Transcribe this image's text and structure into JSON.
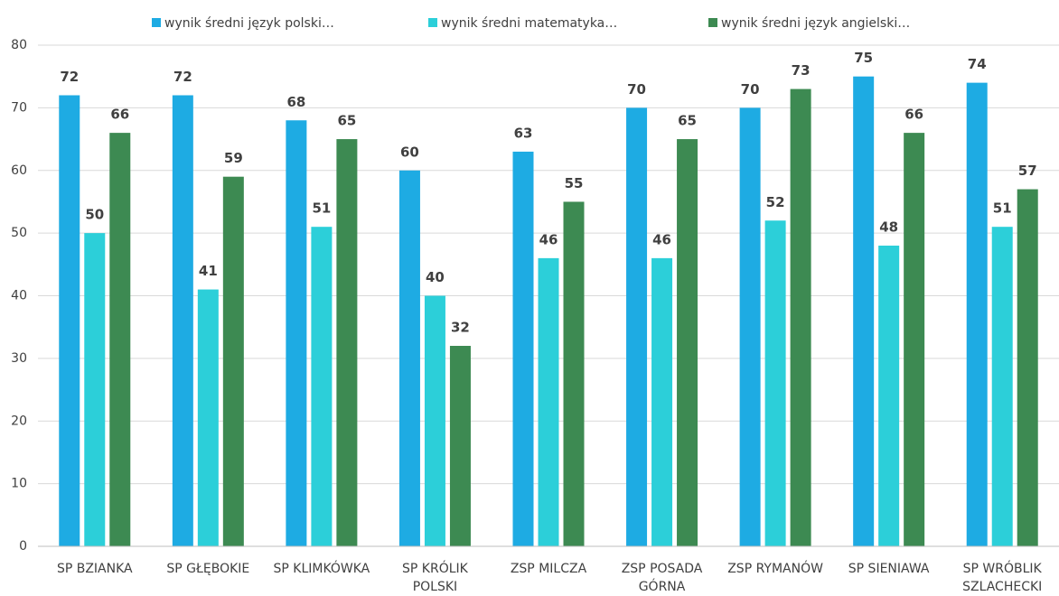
{
  "chart_data": {
    "type": "bar",
    "categories": [
      "SP BZIANKA",
      "SP GŁĘBOKIE",
      "SP KLIMKÓWKA",
      "SP KRÓLIK POLSKI",
      "ZSP MILCZA",
      "ZSP POSADA GÓRNA",
      "ZSP RYMANÓW",
      "SP SIENIAWA",
      "SP WRÓBLIK SZLACHECKI"
    ],
    "series": [
      {
        "name": "wynik średni język polski…",
        "color": "#1eabe3",
        "values": [
          72,
          72,
          68,
          60,
          63,
          70,
          70,
          75,
          74
        ]
      },
      {
        "name": "wynik średni matematyka…",
        "color": "#2ccfd9",
        "values": [
          50,
          41,
          51,
          40,
          46,
          46,
          52,
          48,
          51
        ]
      },
      {
        "name": "wynik średni język angielski…",
        "color": "#3d8a52",
        "values": [
          66,
          59,
          65,
          32,
          55,
          65,
          73,
          66,
          57
        ]
      }
    ],
    "ylim": [
      0,
      80
    ],
    "yticks": [
      0,
      10,
      20,
      30,
      40,
      50,
      60,
      70,
      80
    ],
    "grid": true,
    "legend": "top"
  }
}
